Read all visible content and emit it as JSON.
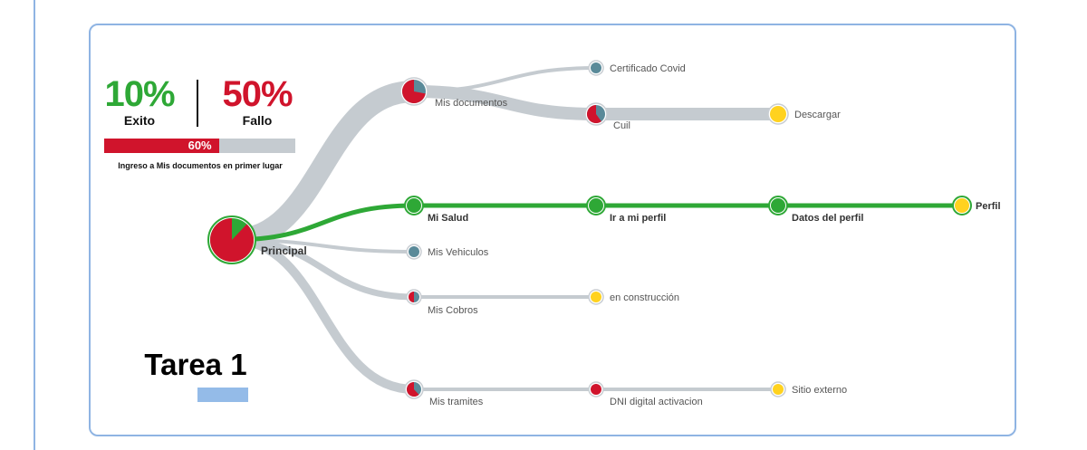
{
  "colors": {
    "success": "#2ea836",
    "failure": "#d0142c",
    "path": "#c5cbd0",
    "neutral": "#5a8a99",
    "pending": "#ffd21f",
    "accent": "#94bbe8"
  },
  "summary": {
    "success_value": "10%",
    "success_label": "Exito",
    "failure_value": "50%",
    "failure_label": "Fallo",
    "progress_percent": 60,
    "progress_text": "60%",
    "progress_caption": "Ingreso a Mis documentos en primer lugar"
  },
  "task": {
    "title": "Tarea 1"
  },
  "flow": {
    "nodes": [
      {
        "id": "principal",
        "label": "Principal",
        "style": "pie",
        "fail": 0.88,
        "bold": true
      },
      {
        "id": "mis-documentos",
        "label": "Mis documentos",
        "style": "pie",
        "fail": 0.72
      },
      {
        "id": "certificado-covid",
        "label": "Certificado Covid",
        "style": "neutral"
      },
      {
        "id": "cuil",
        "label": "Cuil",
        "style": "pie",
        "fail": 0.6
      },
      {
        "id": "descargar",
        "label": "Descargar",
        "style": "pending"
      },
      {
        "id": "mi-salud",
        "label": "Mi Salud",
        "style": "success",
        "bold": true
      },
      {
        "id": "ir-a-mi-perfil",
        "label": "Ir a mi perfil",
        "style": "success",
        "bold": true
      },
      {
        "id": "datos-del-perfil",
        "label": "Datos del perfil",
        "style": "success",
        "bold": true
      },
      {
        "id": "perfil",
        "label": "Perfil",
        "style": "pending-green",
        "bold": true
      },
      {
        "id": "mis-vehiculos",
        "label": "Mis Vehiculos",
        "style": "neutral"
      },
      {
        "id": "mis-cobros",
        "label": "Mis Cobros",
        "style": "pie",
        "fail": 0.5
      },
      {
        "id": "en-construccion",
        "label": "en construcción",
        "style": "pending"
      },
      {
        "id": "mis-tramites",
        "label": "Mis tramites",
        "style": "pie",
        "fail": 0.62
      },
      {
        "id": "dni-digital-activacion",
        "label": "DNI digital activacion",
        "style": "failure"
      },
      {
        "id": "sitio-externo",
        "label": "Sitio externo",
        "style": "pending"
      }
    ],
    "links": [
      {
        "from": "principal",
        "to": "mis-documentos",
        "kind": "path",
        "weight": 24
      },
      {
        "from": "principal",
        "to": "mi-salud",
        "kind": "success",
        "weight": 5
      },
      {
        "from": "principal",
        "to": "mis-vehiculos",
        "kind": "path",
        "weight": 4
      },
      {
        "from": "principal",
        "to": "mis-cobros",
        "kind": "path",
        "weight": 7
      },
      {
        "from": "principal",
        "to": "mis-tramites",
        "kind": "path",
        "weight": 10
      },
      {
        "from": "mis-documentos",
        "to": "certificado-covid",
        "kind": "path",
        "weight": 4
      },
      {
        "from": "mis-documentos",
        "to": "cuil",
        "kind": "path",
        "weight": 14
      },
      {
        "from": "cuil",
        "to": "descargar",
        "kind": "path",
        "weight": 14
      },
      {
        "from": "mi-salud",
        "to": "ir-a-mi-perfil",
        "kind": "success",
        "weight": 5
      },
      {
        "from": "ir-a-mi-perfil",
        "to": "datos-del-perfil",
        "kind": "success",
        "weight": 5
      },
      {
        "from": "datos-del-perfil",
        "to": "perfil",
        "kind": "success",
        "weight": 5
      },
      {
        "from": "mis-cobros",
        "to": "en-construccion",
        "kind": "path",
        "weight": 4
      },
      {
        "from": "mis-tramites",
        "to": "dni-digital-activacion",
        "kind": "path",
        "weight": 4
      },
      {
        "from": "dni-digital-activacion",
        "to": "sitio-externo",
        "kind": "path",
        "weight": 4
      }
    ]
  }
}
